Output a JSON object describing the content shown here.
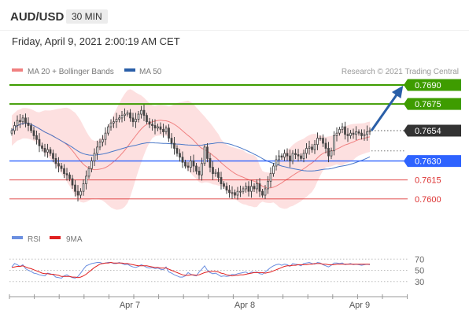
{
  "header": {
    "symbol": "AUD/USD",
    "interval": "30 MIN"
  },
  "datetime": "Friday, April 9, 2021 2:00:19 AM CET",
  "credit": "Research © 2021 Trading Central",
  "legend": {
    "ma20_bb": "MA 20 + Bollinger Bands",
    "ma50": "MA 50",
    "rsi": "RSI",
    "rsi_ma": "9MA"
  },
  "colors": {
    "candle": "#444444",
    "bollinger_fill": "#fde0e0",
    "ma20": "#f08080",
    "ma50": "#4a78c8",
    "resistance": "#3e9c00",
    "pivot": "#2e63ff",
    "support": "#dd3333",
    "rsi": "#6b8fe0",
    "rsi_ma": "#e02020",
    "current_price_box": "#333333",
    "arrow": "#2a5fa8"
  },
  "price_labels": {
    "r2": "0.7690",
    "r1": "0.7675",
    "current": "0.7654",
    "pivot": "0.7630",
    "s1": "0.7615",
    "s2": "0.7600"
  },
  "rsi_ticks": [
    "70",
    "50",
    "30"
  ],
  "x_ticks": [
    "Apr 7",
    "Apr 8",
    "Apr 9"
  ],
  "chart_data": {
    "type": "candlestick",
    "price_range": [
      0.758,
      0.7695
    ],
    "levels": [
      {
        "name": "resistance-2",
        "value": 0.769
      },
      {
        "name": "resistance-1",
        "value": 0.7675
      },
      {
        "name": "pivot",
        "value": 0.763
      },
      {
        "name": "support-1",
        "value": 0.7615
      },
      {
        "name": "support-2",
        "value": 0.76
      }
    ],
    "current_price": 0.7654,
    "target_projection": 0.769,
    "close": [
      0.7654,
      0.7658,
      0.7662,
      0.7661,
      0.7664,
      0.766,
      0.7658,
      0.7654,
      0.765,
      0.7647,
      0.7642,
      0.764,
      0.7637,
      0.7639,
      0.7636,
      0.7632,
      0.7628,
      0.7626,
      0.7624,
      0.762,
      0.7619,
      0.7616,
      0.7611,
      0.7606,
      0.7603,
      0.7606,
      0.7612,
      0.7618,
      0.7624,
      0.763,
      0.7636,
      0.7641,
      0.7645,
      0.7647,
      0.7652,
      0.7657,
      0.766,
      0.7661,
      0.7663,
      0.7664,
      0.7666,
      0.7667,
      0.7668,
      0.7664,
      0.7661,
      0.7663,
      0.7667,
      0.767,
      0.7666,
      0.7661,
      0.7659,
      0.7658,
      0.7656,
      0.7657,
      0.7655,
      0.7653,
      0.7656,
      0.7648,
      0.7644,
      0.764,
      0.7636,
      0.7633,
      0.7629,
      0.7626,
      0.7625,
      0.763,
      0.7626,
      0.7622,
      0.7619,
      0.7628,
      0.7641,
      0.7632,
      0.7625,
      0.762,
      0.7621,
      0.7617,
      0.7612,
      0.761,
      0.7607,
      0.7605,
      0.7605,
      0.7603,
      0.7606,
      0.7606,
      0.7608,
      0.761,
      0.7606,
      0.761,
      0.7608,
      0.7612,
      0.7606,
      0.7603,
      0.7608,
      0.7614,
      0.762,
      0.7626,
      0.7631,
      0.7634,
      0.7633,
      0.7636,
      0.7634,
      0.763,
      0.7636,
      0.7635,
      0.7634,
      0.7632,
      0.7636,
      0.764,
      0.7641,
      0.7639,
      0.7643,
      0.7648,
      0.7648,
      0.7644,
      0.764,
      0.7634,
      0.7638,
      0.765,
      0.7652,
      0.7655,
      0.7657,
      0.7651,
      0.765,
      0.7652,
      0.7651,
      0.7653,
      0.7652,
      0.765,
      0.7651,
      0.7653,
      0.7654
    ],
    "rsi": [
      56,
      62,
      60,
      57,
      60,
      53,
      50,
      48,
      45,
      44,
      42,
      41,
      40,
      45,
      44,
      42,
      38,
      37,
      36,
      40,
      42,
      39,
      37,
      36,
      39,
      45,
      52,
      58,
      60,
      62,
      63,
      64,
      64,
      62,
      63,
      64,
      64,
      62,
      62,
      64,
      62,
      60,
      61,
      58,
      56,
      55,
      57,
      60,
      58,
      55,
      54,
      55,
      53,
      54,
      52,
      51,
      56,
      47,
      45,
      42,
      40,
      38,
      38,
      40,
      46,
      43,
      41,
      40,
      47,
      52,
      58,
      50,
      46,
      44,
      45,
      42,
      39,
      40,
      39,
      40,
      43,
      42,
      44,
      45,
      46,
      47,
      44,
      47,
      46,
      47,
      44,
      43,
      47,
      51,
      55,
      58,
      60,
      61,
      59,
      61,
      60,
      57,
      62,
      61,
      60,
      58,
      62,
      63,
      64,
      62,
      61,
      64,
      63,
      60,
      58,
      56,
      59,
      63,
      63,
      62,
      63,
      60,
      61,
      62,
      60,
      61,
      60,
      59,
      60,
      61,
      60
    ],
    "rsi_ma": [
      55,
      56,
      57,
      57,
      58,
      56,
      54,
      53,
      51,
      49,
      47,
      45,
      44,
      44,
      43,
      43,
      42,
      41,
      39,
      39,
      39,
      39,
      38,
      38,
      37,
      38,
      40,
      43,
      47,
      51,
      55,
      58,
      61,
      62,
      63,
      63,
      64,
      63,
      63,
      63,
      63,
      62,
      62,
      61,
      60,
      59,
      58,
      58,
      58,
      58,
      57,
      56,
      55,
      55,
      54,
      54,
      54,
      52,
      50,
      48,
      46,
      44,
      42,
      41,
      41,
      42,
      42,
      41,
      42,
      44,
      46,
      47,
      48,
      48,
      48,
      47,
      45,
      44,
      42,
      41,
      40,
      41,
      41,
      42,
      42,
      43,
      44,
      45,
      46,
      46,
      46,
      46,
      45,
      46,
      47,
      49,
      51,
      53,
      55,
      57,
      58,
      58,
      59,
      59,
      60,
      60,
      60,
      60,
      61,
      61,
      62,
      62,
      62,
      61,
      61,
      60,
      60,
      60,
      61,
      61,
      61,
      61,
      61,
      61,
      61,
      61,
      61,
      61,
      61,
      61,
      61
    ],
    "rsi_range": [
      10,
      90
    ],
    "rsi_levels": [
      70,
      50,
      30
    ],
    "x_labels": [
      "Apr 7",
      "Apr 8",
      "Apr 9"
    ]
  }
}
